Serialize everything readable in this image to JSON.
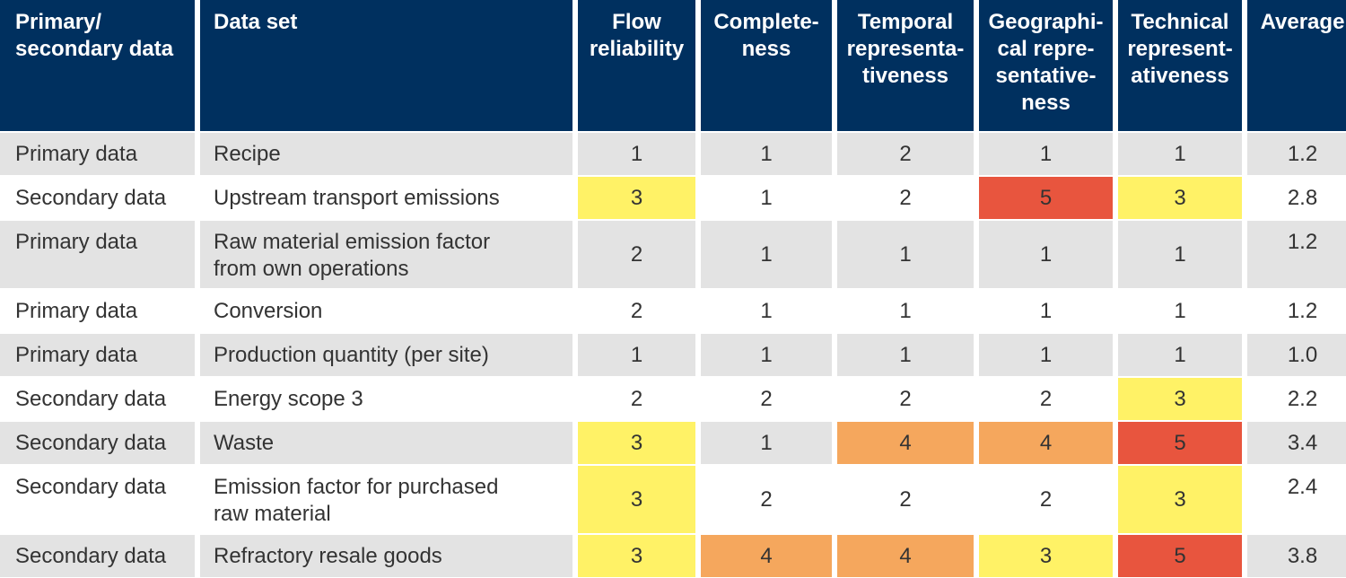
{
  "headers": [
    "Primary/\nsecondary data",
    "Data set",
    "Flow reliability",
    "Complete-\nness",
    "Temporal representa-\ntiveness",
    "Geographi-\ncal repre-\nsentative-\nness",
    "Technical represent-\nativeness",
    "Average"
  ],
  "colors": {
    "header_bg": "#00305f",
    "stripe": "#e3e3e3",
    "score_3": "#fff266",
    "score_4": "#f5a75d",
    "score_5": "#e8553e"
  },
  "rows": [
    {
      "type": "Primary data",
      "dataset": "Recipe",
      "scores": [
        "1",
        "1",
        "2",
        "1",
        "1"
      ],
      "average": "1.2",
      "stripe": "gray"
    },
    {
      "type": "Secondary data",
      "dataset": "Upstream transport emissions",
      "scores": [
        "3",
        "1",
        "2",
        "5",
        "3"
      ],
      "average": "2.8",
      "stripe": "white"
    },
    {
      "type": "Primary data",
      "dataset": "Raw material emission factor\nfrom own operations",
      "scores": [
        "2",
        "1",
        "1",
        "1",
        "1"
      ],
      "average": "1.2",
      "stripe": "gray"
    },
    {
      "type": "Primary data",
      "dataset": "Conversion",
      "scores": [
        "2",
        "1",
        "1",
        "1",
        "1"
      ],
      "average": "1.2",
      "stripe": "white"
    },
    {
      "type": "Primary data",
      "dataset": "Production quantity (per site)",
      "scores": [
        "1",
        "1",
        "1",
        "1",
        "1"
      ],
      "average": "1.0",
      "stripe": "gray"
    },
    {
      "type": "Secondary data",
      "dataset": "Energy scope 3",
      "scores": [
        "2",
        "2",
        "2",
        "2",
        "3"
      ],
      "average": "2.2",
      "stripe": "white"
    },
    {
      "type": "Secondary data",
      "dataset": "Waste",
      "scores": [
        "3",
        "1",
        "4",
        "4",
        "5"
      ],
      "average": "3.4",
      "stripe": "gray"
    },
    {
      "type": "Secondary data",
      "dataset": "Emission factor for purchased\nraw material",
      "scores": [
        "3",
        "2",
        "2",
        "2",
        "3"
      ],
      "average": "2.4",
      "stripe": "white"
    },
    {
      "type": "Secondary data",
      "dataset": "Refractory resale goods",
      "scores": [
        "3",
        "4",
        "4",
        "3",
        "5"
      ],
      "average": "3.8",
      "stripe": "gray"
    }
  ]
}
